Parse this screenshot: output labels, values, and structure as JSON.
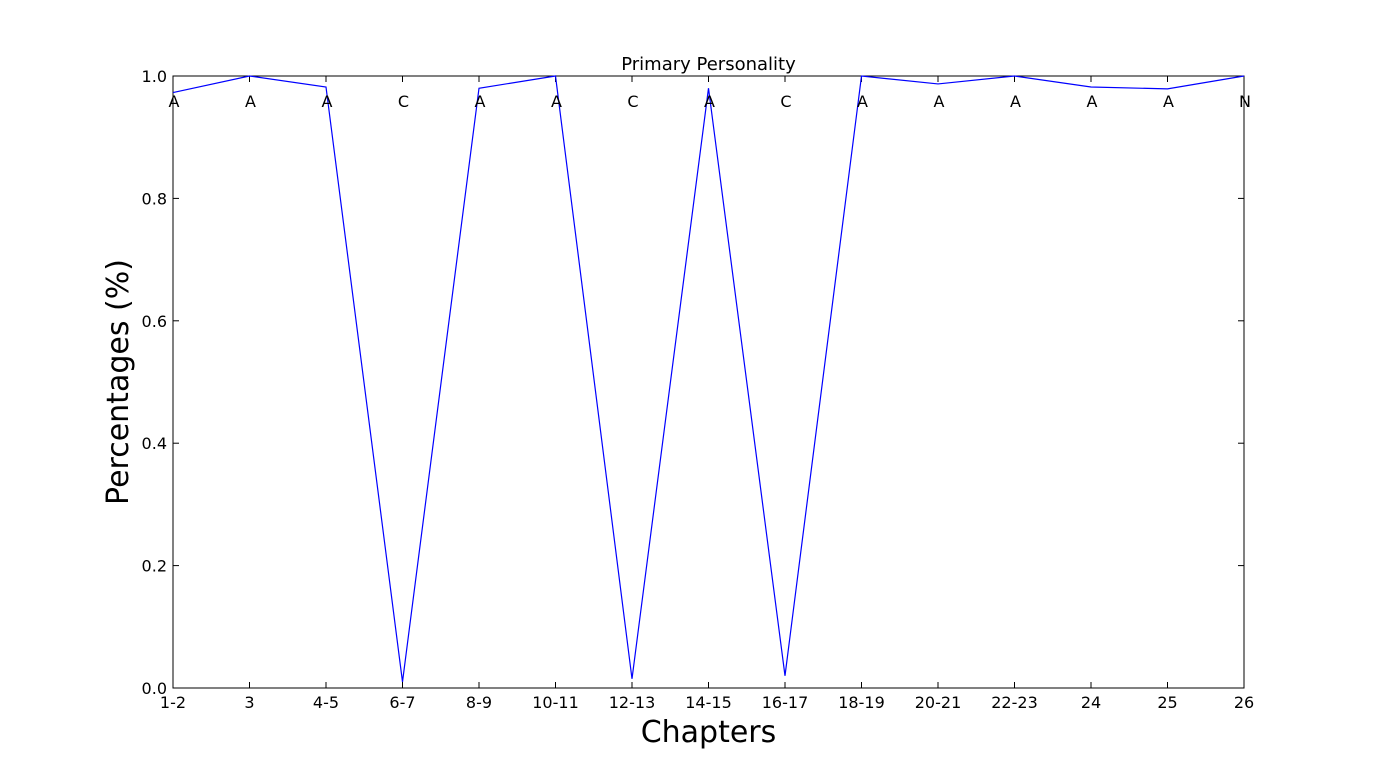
{
  "chart_data": {
    "type": "line",
    "title": "Primary Personality",
    "xlabel": "Chapters",
    "ylabel": "Percentages (%)",
    "categories": [
      "1-2",
      "3",
      "4-5",
      "6-7",
      "8-9",
      "10-11",
      "12-13",
      "14-15",
      "16-17",
      "18-19",
      "20-21",
      "22-23",
      "24",
      "25",
      "26"
    ],
    "values": [
      0.973,
      1.0,
      0.982,
      0.01,
      0.98,
      1.0,
      0.015,
      0.98,
      0.02,
      1.0,
      0.987,
      1.0,
      0.982,
      0.979,
      1.0
    ],
    "point_labels": [
      "A",
      "A",
      "A",
      "C",
      "A",
      "A",
      "C",
      "A",
      "C",
      "A",
      "A",
      "A",
      "A",
      "A",
      "N"
    ],
    "ylim": [
      0.0,
      1.0
    ],
    "yticks": [
      0.0,
      0.2,
      0.4,
      0.6,
      0.8,
      1.0
    ],
    "ytick_labels": [
      "0.0",
      "0.2",
      "0.4",
      "0.6",
      "0.8",
      "1.0"
    ],
    "grid": false,
    "line_color": "#0000ff",
    "axis_color": "#000000"
  }
}
